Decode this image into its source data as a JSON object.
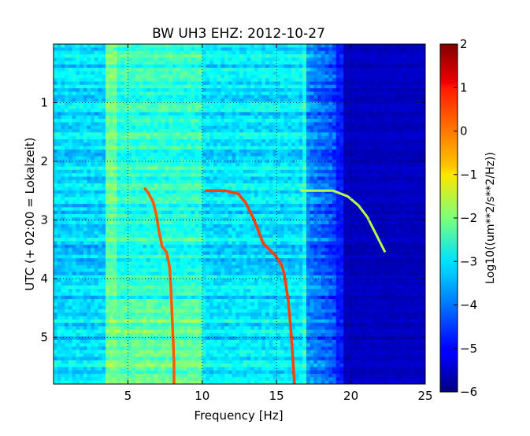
{
  "chart_data": {
    "type": "heatmap",
    "title": "BW UH3 EHZ: 2012-10-27",
    "xlabel": "Frequency [Hz]",
    "ylabel": "UTC (+ 02:00 = Lokalzeit)",
    "xlim": [
      0,
      25
    ],
    "ylim": [
      5.8,
      0
    ],
    "x_ticks": [
      5,
      10,
      15,
      20,
      25
    ],
    "y_ticks": [
      1,
      2,
      3,
      4,
      5
    ],
    "colorbar": {
      "label": "Log10((um**2/s**2/Hz))",
      "range": [
        -6,
        2
      ],
      "ticks": [
        -6,
        -5,
        -4,
        -3,
        -2,
        -1,
        0,
        1,
        2
      ],
      "colormap": "jet"
    },
    "grid": true,
    "features": [
      {
        "name": "",
        "points": [
          [
            6.1,
            2.45
          ],
          [
            6.4,
            2.55
          ],
          [
            6.7,
            2.7
          ],
          [
            6.9,
            2.9
          ],
          [
            7.1,
            3.2
          ],
          [
            7.3,
            3.45
          ],
          [
            7.6,
            3.55
          ],
          [
            7.8,
            3.8
          ],
          [
            7.9,
            4.2
          ],
          [
            8.0,
            4.8
          ],
          [
            8.1,
            5.4
          ],
          [
            8.1,
            5.8
          ]
        ],
        "level": 0.3
      },
      {
        "name": "",
        "points": [
          [
            10.2,
            2.5
          ],
          [
            11.5,
            2.5
          ],
          [
            12.4,
            2.55
          ],
          [
            12.9,
            2.7
          ],
          [
            13.4,
            2.95
          ],
          [
            13.8,
            3.2
          ],
          [
            14.1,
            3.4
          ],
          [
            14.5,
            3.5
          ],
          [
            14.9,
            3.6
          ],
          [
            15.3,
            3.75
          ],
          [
            15.5,
            3.9
          ],
          [
            15.8,
            4.4
          ],
          [
            16.0,
            5.0
          ],
          [
            16.2,
            5.8
          ]
        ],
        "level": 0.5
      },
      {
        "name": "",
        "points": [
          [
            16.6,
            2.5
          ],
          [
            18.8,
            2.5
          ],
          [
            19.8,
            2.6
          ],
          [
            20.5,
            2.75
          ],
          [
            21.1,
            2.95
          ],
          [
            21.6,
            3.2
          ],
          [
            22.1,
            3.45
          ],
          [
            22.3,
            3.55
          ]
        ],
        "level": -1.6
      }
    ]
  }
}
